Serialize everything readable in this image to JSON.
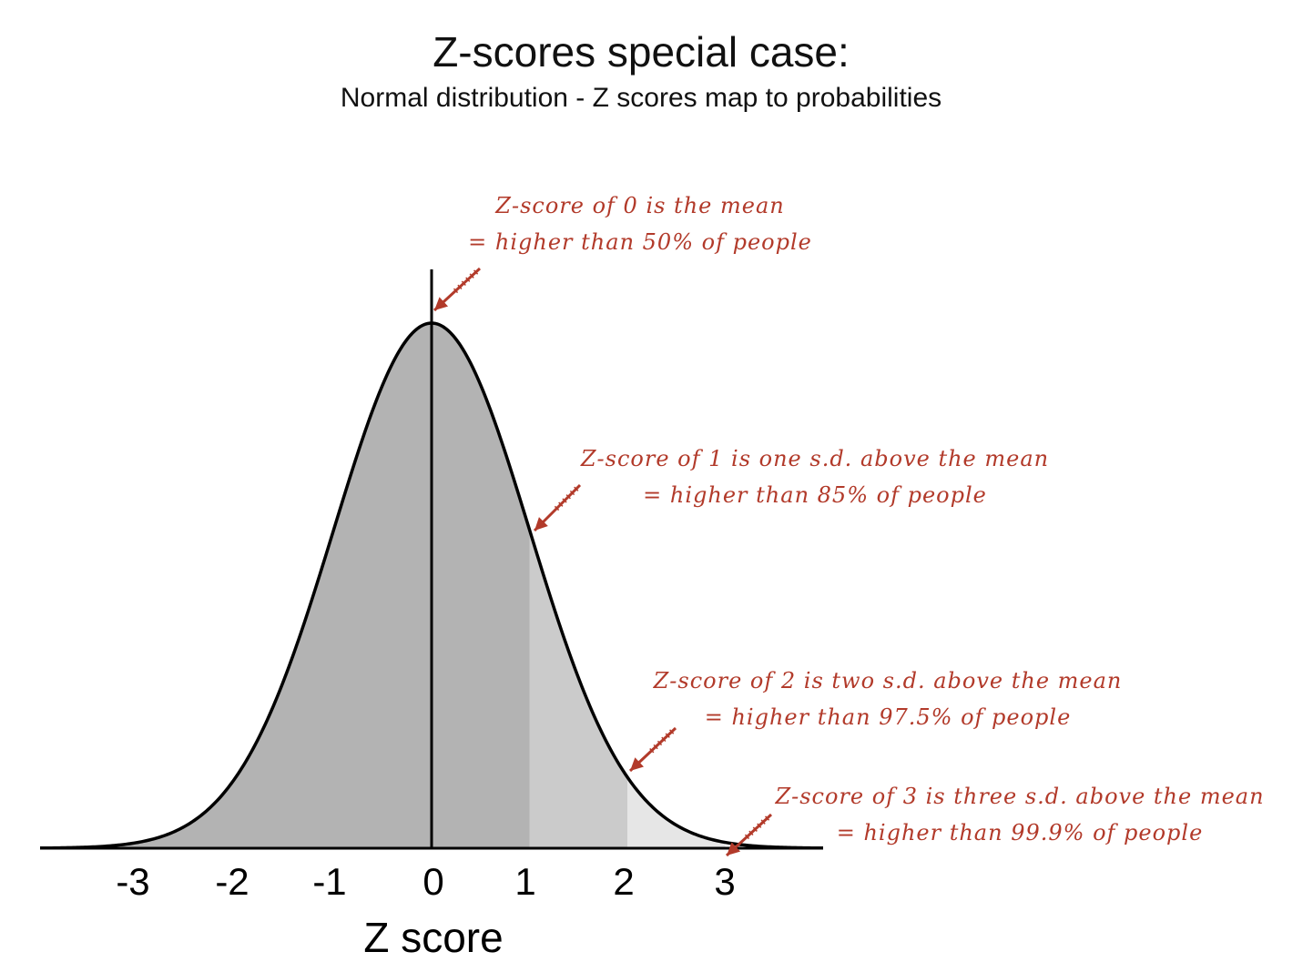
{
  "title": "Z-scores special case:",
  "subtitle": "Normal distribution - Z scores map to probabilities",
  "colors": {
    "curve": "#000000",
    "shade_to_1": "#b3b3b3",
    "shade_1_to_2": "#cbcbcb",
    "shade_2_to_3": "#e6e6e6",
    "annotation": "#b23a2a"
  },
  "chart_data": {
    "type": "area",
    "distribution": "standard normal",
    "xlabel": "Z score",
    "ylabel": "",
    "xlim": [
      -4,
      4
    ],
    "x_ticks": [
      -3,
      -2,
      -1,
      0,
      1,
      2,
      3
    ],
    "tick_labels": [
      "-3",
      "-2",
      "-1",
      "0",
      "1",
      "2",
      "3"
    ],
    "shaded_regions": [
      {
        "from": -4,
        "to": 1,
        "color": "#b3b3b3"
      },
      {
        "from": 1,
        "to": 2,
        "color": "#cbcbcb"
      },
      {
        "from": 2,
        "to": 3,
        "color": "#e6e6e6"
      }
    ],
    "mean_line_at": 0,
    "grid": false,
    "annotations": [
      {
        "z": 0,
        "line1": "Z-score of 0 is the mean",
        "line2": "= higher than 50% of people"
      },
      {
        "z": 1,
        "line1": "Z-score of 1 is one s.d. above the mean",
        "line2": "= higher than 85% of people"
      },
      {
        "z": 2,
        "line1": "Z-score of 2 is two s.d. above the mean",
        "line2": "= higher than 97.5% of people"
      },
      {
        "z": 3,
        "line1": "Z-score of 3 is three s.d. above the mean",
        "line2": "= higher than 99.9% of people"
      }
    ]
  }
}
